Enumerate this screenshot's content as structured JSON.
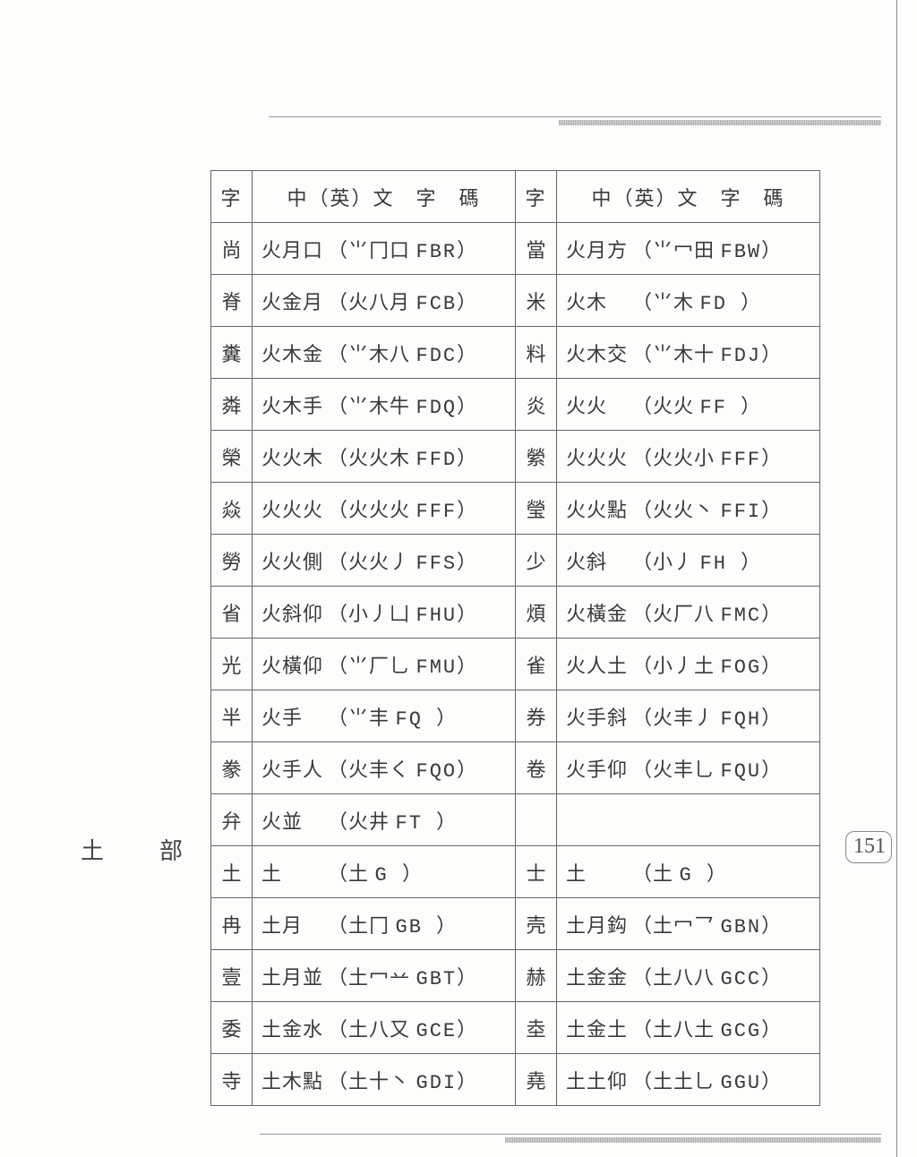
{
  "page_number": "151",
  "section_label": "土　部",
  "headers": {
    "char": "字",
    "code": "中（英）文　字　碼"
  },
  "rows": [
    {
      "l": {
        "char": "尚",
        "seg": "火月口",
        "inner": "⺌冂口",
        "code": "FBR"
      },
      "r": {
        "char": "當",
        "seg": "火月方",
        "inner": "⺌冖田",
        "code": "FBW"
      }
    },
    {
      "l": {
        "char": "脊",
        "seg": "火金月",
        "inner": "火八月",
        "code": "FCB"
      },
      "r": {
        "char": "米",
        "seg": "火木",
        "inner": "⺌木",
        "code": "FD"
      }
    },
    {
      "l": {
        "char": "糞",
        "seg": "火木金",
        "inner": "⺌木八",
        "code": "FDC"
      },
      "r": {
        "char": "料",
        "seg": "火木交",
        "inner": "⺌木十",
        "code": "FDJ"
      }
    },
    {
      "l": {
        "char": "粦",
        "seg": "火木手",
        "inner": "⺌木牛",
        "code": "FDQ"
      },
      "r": {
        "char": "炎",
        "seg": "火火",
        "inner": "火火",
        "code": "FF"
      }
    },
    {
      "l": {
        "char": "榮",
        "seg": "火火木",
        "inner": "火火木",
        "code": "FFD"
      },
      "r": {
        "char": "縈",
        "seg": "火火火",
        "inner": "火火小",
        "code": "FFF"
      }
    },
    {
      "l": {
        "char": "焱",
        "seg": "火火火",
        "inner": "火火火",
        "code": "FFF"
      },
      "r": {
        "char": "瑩",
        "seg": "火火點",
        "inner": "火火丶",
        "code": "FFI"
      }
    },
    {
      "l": {
        "char": "勞",
        "seg": "火火側",
        "inner": "火火丿",
        "code": "FFS"
      },
      "r": {
        "char": "少",
        "seg": "火斜",
        "inner": "小丿",
        "code": "FH"
      }
    },
    {
      "l": {
        "char": "省",
        "seg": "火斜仰",
        "inner": "小丿凵",
        "code": "FHU"
      },
      "r": {
        "char": "煩",
        "seg": "火橫金",
        "inner": "火厂八",
        "code": "FMC"
      }
    },
    {
      "l": {
        "char": "光",
        "seg": "火橫仰",
        "inner": "⺌厂乚",
        "code": "FMU"
      },
      "r": {
        "char": "雀",
        "seg": "火人土",
        "inner": "小丿土",
        "code": "FOG"
      }
    },
    {
      "l": {
        "char": "半",
        "seg": "火手",
        "inner": "⺌丰",
        "code": "FQ"
      },
      "r": {
        "char": "券",
        "seg": "火手斜",
        "inner": "火丰丿",
        "code": "FQH"
      }
    },
    {
      "l": {
        "char": "豢",
        "seg": "火手人",
        "inner": "火丰く",
        "code": "FQO"
      },
      "r": {
        "char": "卷",
        "seg": "火手仰",
        "inner": "火丰乚",
        "code": "FQU"
      }
    },
    {
      "l": {
        "char": "弁",
        "seg": "火並",
        "inner": "火井",
        "code": "FT"
      },
      "r": null
    },
    {
      "l": {
        "char": "土",
        "seg": "土",
        "inner": "土",
        "code": "G"
      },
      "r": {
        "char": "士",
        "seg": "土",
        "inner": "土",
        "code": "G"
      }
    },
    {
      "l": {
        "char": "冉",
        "seg": "土月",
        "inner": "土冂",
        "code": "GB"
      },
      "r": {
        "char": "壳",
        "seg": "土月鈎",
        "inner": "土冖乛",
        "code": "GBN"
      }
    },
    {
      "l": {
        "char": "壹",
        "seg": "土月並",
        "inner": "土冖䒑",
        "code": "GBT"
      },
      "r": {
        "char": "赫",
        "seg": "土金金",
        "inner": "土八八",
        "code": "GCC"
      }
    },
    {
      "l": {
        "char": "委",
        "seg": "土金水",
        "inner": "土八又",
        "code": "GCE"
      },
      "r": {
        "char": "坴",
        "seg": "土金土",
        "inner": "土八土",
        "code": "GCG"
      }
    },
    {
      "l": {
        "char": "寺",
        "seg": "土木點",
        "inner": "土十丶",
        "code": "GDI"
      },
      "r": {
        "char": "堯",
        "seg": "土土仰",
        "inner": "土土乚",
        "code": "GGU"
      }
    }
  ]
}
